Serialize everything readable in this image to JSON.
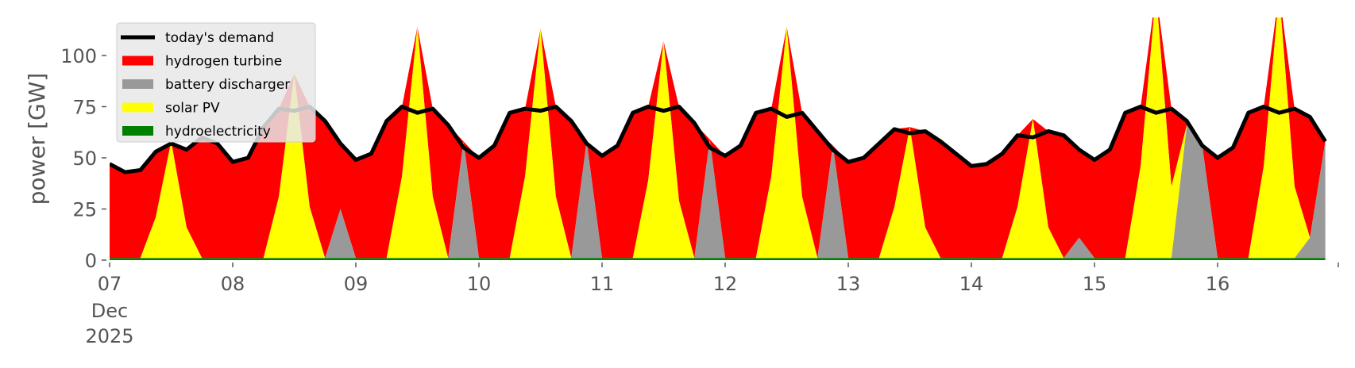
{
  "chart_data": {
    "type": "area",
    "title": "",
    "xlabel": "",
    "ylabel": "power [GW]",
    "ylim": [
      0,
      118.6
    ],
    "xlim_days": [
      7,
      16.95
    ],
    "x_step_hours": 3,
    "x_start": "2025-12-07 00:00",
    "x_ticks": [
      {
        "day": 7,
        "label": "07",
        "sub1": "Dec",
        "sub2": "2025"
      },
      {
        "day": 8,
        "label": "08"
      },
      {
        "day": 9,
        "label": "09"
      },
      {
        "day": 10,
        "label": "10"
      },
      {
        "day": 11,
        "label": "11"
      },
      {
        "day": 12,
        "label": "12"
      },
      {
        "day": 13,
        "label": "13"
      },
      {
        "day": 14,
        "label": "14"
      },
      {
        "day": 15,
        "label": "15"
      },
      {
        "day": 16,
        "label": "16"
      }
    ],
    "y_ticks": [
      {
        "value": 0,
        "label": "0"
      },
      {
        "value": 25,
        "label": "25"
      },
      {
        "value": 50,
        "label": "50"
      },
      {
        "value": 75,
        "label": "75"
      },
      {
        "value": 100,
        "label": "100"
      }
    ],
    "legend": {
      "placement": "top-left",
      "entries": [
        {
          "label": "today's demand",
          "color": "#000000",
          "kind": "line"
        },
        {
          "label": "hydrogen turbine",
          "color": "#ff0000",
          "kind": "patch"
        },
        {
          "label": "battery discharger",
          "color": "#999999",
          "kind": "patch"
        },
        {
          "label": "solar PV",
          "color": "#ffff00",
          "kind": "patch"
        },
        {
          "label": "hydroelectricity",
          "color": "#008000",
          "kind": "patch"
        }
      ]
    },
    "series": [
      {
        "name": "today's demand",
        "values": [
          47,
          43,
          44,
          53,
          57,
          54,
          60,
          57,
          48,
          50,
          65,
          74,
          73,
          75,
          68,
          57,
          49,
          52,
          68,
          75,
          72,
          74,
          66,
          55,
          50,
          56,
          72,
          74,
          73,
          75,
          68,
          57,
          51,
          56,
          72,
          75,
          73,
          75,
          67,
          55,
          51,
          56,
          72,
          74,
          70,
          72,
          63,
          54,
          48,
          50,
          57,
          64,
          62,
          63,
          58,
          52,
          46,
          47,
          52,
          61,
          60,
          63,
          61,
          54,
          49,
          54,
          72,
          75,
          72,
          74,
          68,
          56,
          50,
          55,
          72,
          75,
          72,
          74,
          70,
          58
        ]
      },
      {
        "name": "hydroelectricity",
        "values": [
          1,
          1,
          1,
          1,
          1,
          1,
          1,
          1,
          1,
          1,
          1,
          1,
          1,
          1,
          1,
          1,
          1,
          1,
          1,
          1,
          1,
          1,
          1,
          1,
          1,
          1,
          1,
          1,
          1,
          1,
          1,
          1,
          1,
          1,
          1,
          1,
          1,
          1,
          1,
          1,
          1,
          1,
          1,
          1,
          1,
          1,
          1,
          1,
          1,
          1,
          1,
          1,
          1,
          1,
          1,
          1,
          1,
          1,
          1,
          1,
          1,
          1,
          1,
          1,
          1,
          1,
          1,
          1,
          1,
          1,
          1,
          1,
          1,
          1,
          1,
          1,
          1,
          1,
          1,
          1
        ]
      },
      {
        "name": "battery discharger",
        "values": [
          0,
          0,
          0,
          0,
          0,
          0,
          0,
          0,
          0,
          0,
          0,
          0,
          0,
          0,
          0,
          24,
          0,
          0,
          0,
          0,
          0,
          0,
          0,
          57,
          0,
          0,
          0,
          0,
          0,
          0,
          0,
          57,
          0,
          0,
          0,
          0,
          0,
          0,
          0,
          58,
          0,
          0,
          0,
          0,
          0,
          0,
          0,
          55,
          0,
          0,
          0,
          0,
          0,
          0,
          0,
          0,
          0,
          0,
          0,
          0,
          0,
          0,
          0,
          10,
          0,
          0,
          0,
          0,
          0,
          0,
          65,
          55,
          0,
          0,
          0,
          0,
          0,
          0,
          10,
          57
        ]
      },
      {
        "name": "solar PV",
        "values": [
          0,
          0,
          0,
          20,
          57,
          15,
          0,
          0,
          0,
          0,
          0,
          30,
          90,
          25,
          0,
          0,
          0,
          0,
          0,
          40,
          113,
          30,
          0,
          0,
          0,
          0,
          0,
          40,
          112,
          30,
          0,
          0,
          0,
          0,
          0,
          38,
          106,
          28,
          0,
          0,
          0,
          0,
          0,
          40,
          113,
          30,
          0,
          0,
          0,
          0,
          0,
          25,
          64,
          15,
          0,
          0,
          0,
          0,
          0,
          25,
          68,
          15,
          0,
          0,
          0,
          0,
          0,
          45,
          130,
          35,
          0,
          0,
          0,
          0,
          0,
          45,
          130,
          35,
          0,
          0
        ]
      },
      {
        "name": "hydrogen turbine",
        "derived": "demand minus other sources"
      }
    ]
  }
}
